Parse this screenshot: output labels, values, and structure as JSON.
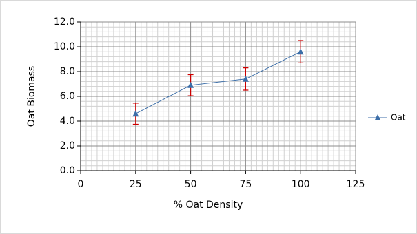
{
  "chart_data": {
    "type": "line",
    "x_label": "% Oat Density",
    "y_label": "Oat Biomass",
    "x": [
      25,
      50,
      75,
      100
    ],
    "series": [
      {
        "name": "Oat",
        "color": "#3c6ea8",
        "error_color": "#cc0000",
        "values": [
          4.6,
          6.9,
          7.4,
          9.6
        ],
        "errors": [
          0.85,
          0.85,
          0.9,
          0.9
        ]
      }
    ],
    "xlim": [
      0,
      125
    ],
    "xticks": [
      0,
      25,
      50,
      75,
      100,
      125
    ],
    "ylim": [
      0,
      12
    ],
    "yticks": [
      {
        "value": 0,
        "label": "0.0"
      },
      {
        "value": 2,
        "label": "2.0"
      },
      {
        "value": 4,
        "label": "4.0"
      },
      {
        "value": 6,
        "label": "6.0"
      },
      {
        "value": 8,
        "label": "8.0"
      },
      {
        "value": 10,
        "label": "10.0"
      },
      {
        "value": 12,
        "label": "12.0"
      }
    ],
    "grid": true,
    "legend": "right"
  }
}
